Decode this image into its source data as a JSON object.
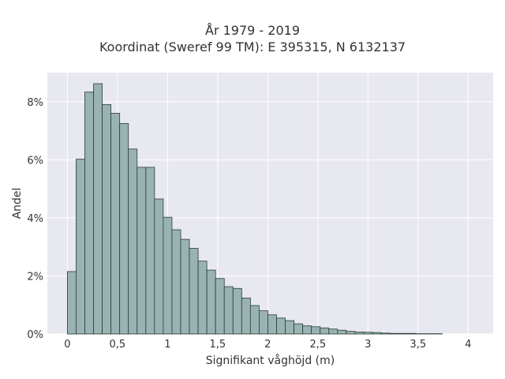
{
  "chart_data": {
    "type": "bar",
    "title_lines": [
      "År 1979 - 2019",
      "Koordinat (Sweref 99 TM): E 395315, N 6132137"
    ],
    "xlabel": "Signifikant våghöjd (m)",
    "ylabel": "Andel",
    "xlim": [
      -0.2,
      4.25
    ],
    "ylim": [
      0,
      9.0
    ],
    "x_ticks": [
      0,
      0.5,
      1,
      1.5,
      2,
      2.5,
      3,
      3.5,
      4
    ],
    "x_tick_labels": [
      "0",
      "0,5",
      "1",
      "1,5",
      "2",
      "2,5",
      "3",
      "3,5",
      "4"
    ],
    "y_ticks": [
      0,
      2,
      4,
      6,
      8
    ],
    "y_tick_labels": [
      "0%",
      "2%",
      "4%",
      "6%",
      "8%"
    ],
    "y_unit": "%",
    "grid": true,
    "bin_width": 0.087,
    "bin_start": 0,
    "values": [
      2.15,
      6.02,
      8.33,
      8.62,
      7.9,
      7.6,
      7.25,
      6.37,
      5.74,
      5.74,
      4.65,
      4.02,
      3.59,
      3.26,
      2.95,
      2.51,
      2.2,
      1.91,
      1.63,
      1.57,
      1.24,
      0.98,
      0.8,
      0.66,
      0.55,
      0.46,
      0.35,
      0.28,
      0.25,
      0.21,
      0.17,
      0.13,
      0.09,
      0.07,
      0.06,
      0.05,
      0.03,
      0.02,
      0.02,
      0.02,
      0.01,
      0.01,
      0.01
    ],
    "colors": {
      "bar_fill": "#98b3b1",
      "bar_edge": "#2b3b3a",
      "plot_bg": "#e8e8f0",
      "grid": "#ffffff"
    }
  }
}
